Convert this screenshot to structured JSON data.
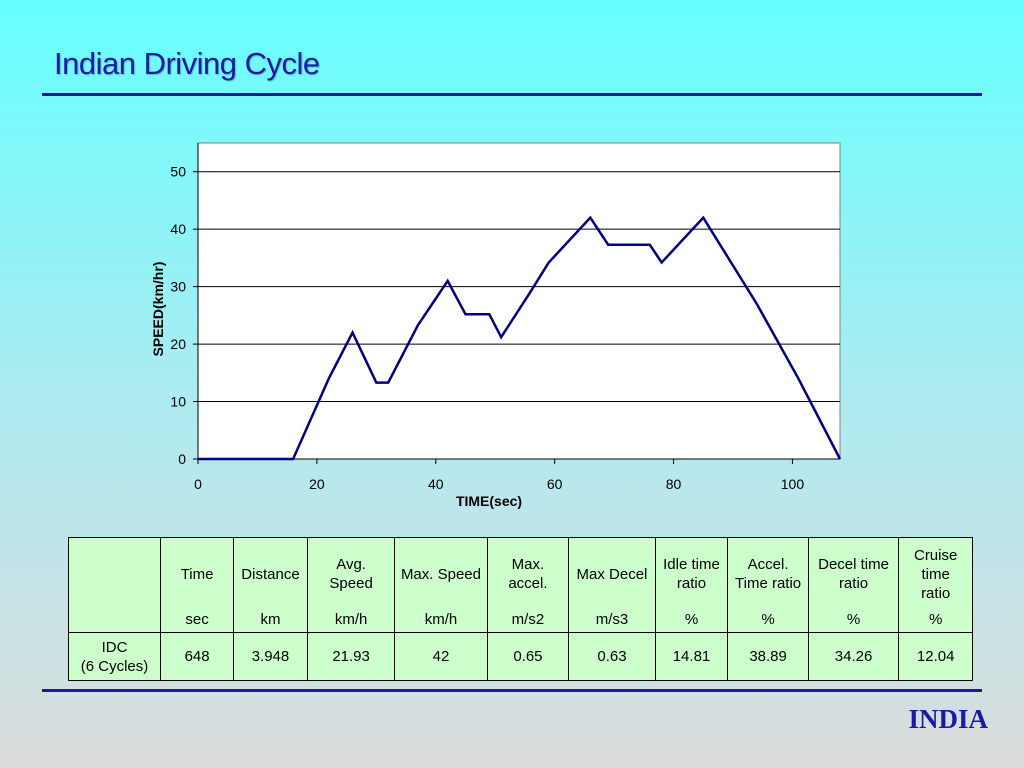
{
  "slide": {
    "title": "Indian Driving Cycle",
    "footer": "INDIA"
  },
  "colors": {
    "title": "#1a1aa6",
    "line": "#000080",
    "table_bg": "#ccffcc"
  },
  "chart_data": {
    "type": "line",
    "xlabel": "TIME(sec)",
    "ylabel": "SPEED(km/hr)",
    "xlim": [
      0,
      108
    ],
    "ylim": [
      0,
      55
    ],
    "xticks": [
      0,
      20,
      40,
      60,
      80,
      100
    ],
    "yticks": [
      0,
      10,
      20,
      30,
      40,
      50
    ],
    "grid": "horizontal",
    "x": [
      0,
      16,
      22,
      26,
      30,
      32,
      37,
      42,
      45,
      49,
      51,
      56,
      59,
      66,
      69,
      76,
      78,
      85,
      94,
      101,
      108
    ],
    "y": [
      0,
      0,
      14,
      22,
      13.3,
      13.3,
      23.3,
      31,
      25.2,
      25.2,
      21.2,
      29.2,
      34.2,
      42,
      37.3,
      37.3,
      34.2,
      42,
      27,
      14,
      0
    ]
  },
  "table": {
    "headers": [
      {
        "label": "",
        "unit": ""
      },
      {
        "label": "Time",
        "unit": "sec"
      },
      {
        "label": "Distance",
        "unit": "km"
      },
      {
        "label": "Avg.\nSpeed",
        "unit": "km/h"
      },
      {
        "label": "Max. Speed",
        "unit": "km/h"
      },
      {
        "label": "Max.\naccel.",
        "unit": "m/s2"
      },
      {
        "label": "Max Decel",
        "unit": "m/s3"
      },
      {
        "label": "Idle time\nratio",
        "unit": "%"
      },
      {
        "label": "Accel.\nTime ratio",
        "unit": "%"
      },
      {
        "label": "Decel time\nratio",
        "unit": "%"
      },
      {
        "label": "Cruise\ntime\nratio",
        "unit": "%"
      }
    ],
    "row": {
      "label": "IDC\n(6 Cycles)",
      "values": [
        "648",
        "3.948",
        "21.93",
        "42",
        "0.65",
        "0.63",
        "14.81",
        "38.89",
        "34.26",
        "12.04"
      ]
    }
  }
}
